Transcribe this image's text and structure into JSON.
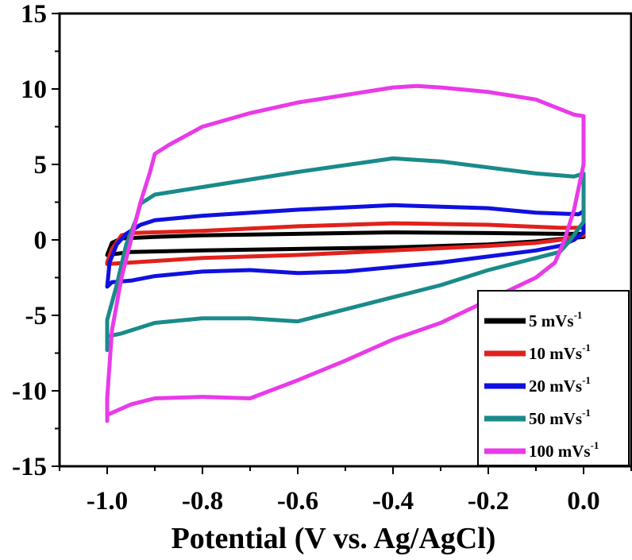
{
  "chart_data": {
    "type": "line",
    "title": "",
    "xlabel": "Potential (V vs. Ag/AgCl)",
    "ylabel": "",
    "xlim": [
      -1.1,
      0.1
    ],
    "ylim": [
      -15,
      15
    ],
    "x_ticks": [
      -1.0,
      -0.8,
      -0.6,
      -0.4,
      -0.2,
      0.0
    ],
    "x_tick_labels": [
      "-1.0",
      "-0.8",
      "-0.6",
      "-0.4",
      "-0.2",
      "0.0"
    ],
    "y_ticks": [
      -15,
      -10,
      -5,
      0,
      5,
      10,
      15
    ],
    "y_tick_labels": [
      "-15",
      "-10",
      "-5",
      "0",
      "5",
      "10",
      "15"
    ],
    "grid": false,
    "legend_position": "bottom-right",
    "series": [
      {
        "name": "5 mVs",
        "name_superscript": "-1",
        "color": "#000000",
        "points": [
          [
            -1.0,
            -1.0
          ],
          [
            -0.99,
            -0.2
          ],
          [
            -0.97,
            0.1
          ],
          [
            -0.9,
            0.2
          ],
          [
            -0.8,
            0.3
          ],
          [
            -0.6,
            0.4
          ],
          [
            -0.4,
            0.5
          ],
          [
            -0.2,
            0.45
          ],
          [
            -0.05,
            0.4
          ],
          [
            0.0,
            0.4
          ],
          [
            0.0,
            0.2
          ],
          [
            -0.05,
            0.05
          ],
          [
            -0.1,
            -0.1
          ],
          [
            -0.2,
            -0.3
          ],
          [
            -0.4,
            -0.5
          ],
          [
            -0.6,
            -0.6
          ],
          [
            -0.8,
            -0.7
          ],
          [
            -0.95,
            -0.8
          ],
          [
            -1.0,
            -1.0
          ]
        ]
      },
      {
        "name": "10 mVs",
        "name_superscript": "-1",
        "color": "#e0211c",
        "points": [
          [
            -1.0,
            -1.5
          ],
          [
            -0.99,
            -0.6
          ],
          [
            -0.97,
            0.3
          ],
          [
            -0.95,
            0.45
          ],
          [
            -0.9,
            0.5
          ],
          [
            -0.8,
            0.6
          ],
          [
            -0.6,
            0.9
          ],
          [
            -0.4,
            1.1
          ],
          [
            -0.2,
            1.0
          ],
          [
            -0.05,
            0.8
          ],
          [
            0.0,
            0.8
          ],
          [
            0.0,
            0.3
          ],
          [
            -0.05,
            0.0
          ],
          [
            -0.1,
            -0.2
          ],
          [
            -0.2,
            -0.4
          ],
          [
            -0.4,
            -0.7
          ],
          [
            -0.6,
            -1.0
          ],
          [
            -0.8,
            -1.2
          ],
          [
            -0.95,
            -1.5
          ],
          [
            -1.0,
            -1.6
          ],
          [
            -1.0,
            -1.5
          ]
        ]
      },
      {
        "name": "20 mVs",
        "name_superscript": "-1",
        "color": "#1010e0",
        "points": [
          [
            -1.0,
            -3.1
          ],
          [
            -0.995,
            -1.5
          ],
          [
            -0.98,
            -0.3
          ],
          [
            -0.96,
            0.4
          ],
          [
            -0.93,
            1.0
          ],
          [
            -0.9,
            1.3
          ],
          [
            -0.8,
            1.6
          ],
          [
            -0.6,
            2.0
          ],
          [
            -0.4,
            2.3
          ],
          [
            -0.2,
            2.1
          ],
          [
            -0.1,
            1.8
          ],
          [
            -0.01,
            1.7
          ],
          [
            0.0,
            1.9
          ],
          [
            0.0,
            0.5
          ],
          [
            -0.02,
            0.0
          ],
          [
            -0.05,
            -0.4
          ],
          [
            -0.1,
            -0.7
          ],
          [
            -0.2,
            -1.1
          ],
          [
            -0.3,
            -1.5
          ],
          [
            -0.4,
            -1.8
          ],
          [
            -0.5,
            -2.1
          ],
          [
            -0.6,
            -2.2
          ],
          [
            -0.7,
            -2.0
          ],
          [
            -0.8,
            -2.1
          ],
          [
            -0.9,
            -2.4
          ],
          [
            -0.95,
            -2.7
          ],
          [
            -0.99,
            -2.8
          ],
          [
            -1.0,
            -3.1
          ]
        ]
      },
      {
        "name": "50 mVs",
        "name_superscript": "-1",
        "color": "#1a8a8a",
        "points": [
          [
            -1.0,
            -7.3
          ],
          [
            -1.0,
            -5.3
          ],
          [
            -0.98,
            -3.0
          ],
          [
            -0.96,
            -0.3
          ],
          [
            -0.94,
            1.3
          ],
          [
            -0.93,
            2.4
          ],
          [
            -0.9,
            3.0
          ],
          [
            -0.8,
            3.5
          ],
          [
            -0.6,
            4.5
          ],
          [
            -0.4,
            5.4
          ],
          [
            -0.3,
            5.2
          ],
          [
            -0.2,
            4.8
          ],
          [
            -0.1,
            4.4
          ],
          [
            -0.02,
            4.2
          ],
          [
            0.0,
            4.4
          ],
          [
            0.0,
            1.2
          ],
          [
            -0.03,
            -0.1
          ],
          [
            -0.05,
            -0.8
          ],
          [
            -0.1,
            -1.2
          ],
          [
            -0.2,
            -2.0
          ],
          [
            -0.3,
            -3.0
          ],
          [
            -0.4,
            -3.8
          ],
          [
            -0.5,
            -4.6
          ],
          [
            -0.6,
            -5.4
          ],
          [
            -0.7,
            -5.2
          ],
          [
            -0.8,
            -5.2
          ],
          [
            -0.9,
            -5.5
          ],
          [
            -0.97,
            -6.2
          ],
          [
            -1.0,
            -6.4
          ],
          [
            -1.0,
            -7.3
          ]
        ]
      },
      {
        "name": "100 mVs",
        "name_superscript": "-1",
        "color": "#e93ae9",
        "points": [
          [
            -1.0,
            -12.0
          ],
          [
            -1.0,
            -10.5
          ],
          [
            -0.99,
            -6.0
          ],
          [
            -0.97,
            -2.5
          ],
          [
            -0.95,
            0.0
          ],
          [
            -0.93,
            2.5
          ],
          [
            -0.91,
            4.5
          ],
          [
            -0.9,
            5.7
          ],
          [
            -0.87,
            6.3
          ],
          [
            -0.8,
            7.5
          ],
          [
            -0.7,
            8.4
          ],
          [
            -0.6,
            9.1
          ],
          [
            -0.5,
            9.6
          ],
          [
            -0.4,
            10.1
          ],
          [
            -0.35,
            10.2
          ],
          [
            -0.3,
            10.1
          ],
          [
            -0.2,
            9.8
          ],
          [
            -0.1,
            9.3
          ],
          [
            -0.02,
            8.3
          ],
          [
            0.0,
            8.2
          ],
          [
            0.0,
            5.0
          ],
          [
            -0.02,
            2.0
          ],
          [
            -0.04,
            0.0
          ],
          [
            -0.06,
            -1.5
          ],
          [
            -0.1,
            -2.5
          ],
          [
            -0.2,
            -4.0
          ],
          [
            -0.3,
            -5.5
          ],
          [
            -0.4,
            -6.6
          ],
          [
            -0.5,
            -8.0
          ],
          [
            -0.6,
            -9.3
          ],
          [
            -0.7,
            -10.5
          ],
          [
            -0.8,
            -10.4
          ],
          [
            -0.9,
            -10.5
          ],
          [
            -0.95,
            -10.9
          ],
          [
            -1.0,
            -11.6
          ],
          [
            -1.0,
            -12.0
          ]
        ]
      }
    ]
  }
}
